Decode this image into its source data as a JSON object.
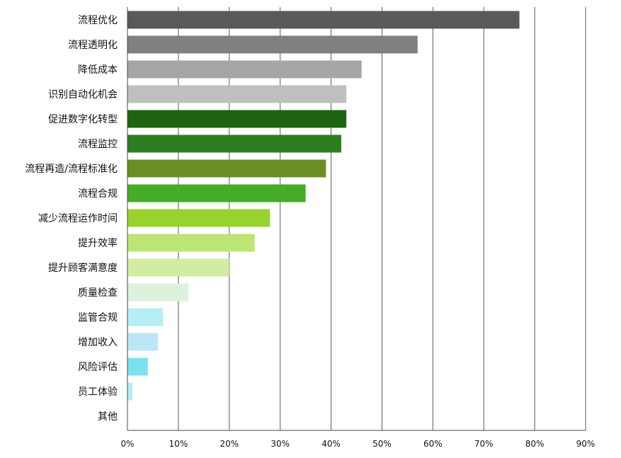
{
  "chart_data": {
    "type": "bar",
    "orientation": "horizontal",
    "title": "",
    "xlabel": "",
    "ylabel": "",
    "xlim": [
      0,
      90
    ],
    "x_ticks": [
      "0%",
      "10%",
      "20%",
      "30%",
      "40%",
      "50%",
      "60%",
      "70%",
      "80%",
      "90%"
    ],
    "grid": "vertical",
    "legend": "none",
    "categories": [
      "流程优化",
      "流程透明化",
      "降低成本",
      "识别自动化机会",
      "促进数字化转型",
      "流程监控",
      "流程再造/流程标准化",
      "流程合规",
      "减少流程运作时间",
      "提升效率",
      "提升顾客满意度",
      "质量检查",
      "监管合规",
      "增加收入",
      "风险评估",
      "员工体验",
      "其他"
    ],
    "values": [
      77,
      57,
      46,
      43,
      43,
      42,
      39,
      35,
      28,
      25,
      20,
      12,
      7,
      6,
      4,
      1,
      0
    ],
    "colors": [
      "#595959",
      "#808080",
      "#a6a6a6",
      "#bfbfbf",
      "#1e6410",
      "#2e7d20",
      "#6b8e23",
      "#45ac26",
      "#97d32c",
      "#bde574",
      "#d2eca2",
      "#dcf2dc",
      "#b6eef5",
      "#bde5f8",
      "#7ae1f0",
      "#b7eef6",
      "#dddddd"
    ]
  }
}
